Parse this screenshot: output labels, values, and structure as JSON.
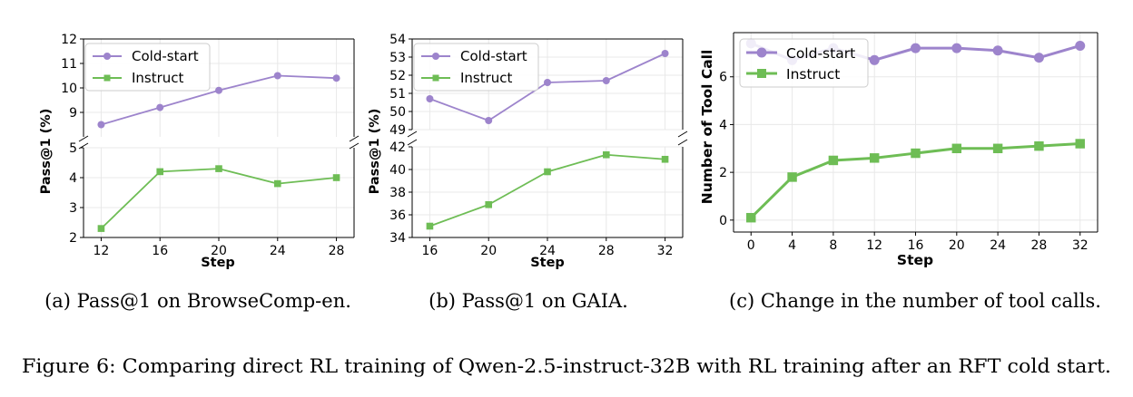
{
  "colors": {
    "cold": "#9d84cc",
    "instruct": "#6ebd55"
  },
  "figure_caption": "Figure 6: Comparing direct RL training of Qwen-2.5-instruct-32B with RL training after an RFT cold start.",
  "chart_data": [
    {
      "id": "a",
      "type": "line",
      "broken_axis": true,
      "caption": "(a) Pass@1 on BrowseComp-en.",
      "xlabel": "Step",
      "ylabel": "Pass@1 (%)",
      "x": [
        12,
        16,
        20,
        24,
        28
      ],
      "xticks": [
        12,
        16,
        20,
        24,
        28
      ],
      "xlim": [
        10.8,
        29.2
      ],
      "ylim_top": [
        8,
        12
      ],
      "yticks_top": [
        9,
        10,
        11,
        12
      ],
      "ylim_bottom": [
        2,
        5
      ],
      "yticks_bottom": [
        2,
        3,
        4,
        5
      ],
      "legend": [
        "Cold-start",
        "Instruct"
      ],
      "series": [
        {
          "name": "Cold-start",
          "panel": "top",
          "values": [
            8.5,
            9.2,
            9.9,
            10.5,
            10.4
          ]
        },
        {
          "name": "Instruct",
          "panel": "bottom",
          "values": [
            2.3,
            4.2,
            4.3,
            3.8,
            4.0
          ]
        }
      ]
    },
    {
      "id": "b",
      "type": "line",
      "broken_axis": true,
      "caption": "(b) Pass@1 on GAIA.",
      "xlabel": "Step",
      "ylabel": "Pass@1 (%)",
      "x": [
        16,
        20,
        24,
        28,
        32
      ],
      "xticks": [
        16,
        20,
        24,
        28,
        32
      ],
      "xlim": [
        14.8,
        33.2
      ],
      "ylim_top": [
        49,
        54
      ],
      "yticks_top": [
        49,
        50,
        51,
        52,
        53,
        54
      ],
      "ylim_bottom": [
        34,
        42
      ],
      "yticks_bottom": [
        34,
        36,
        38,
        40,
        42
      ],
      "legend": [
        "Cold-start",
        "Instruct"
      ],
      "series": [
        {
          "name": "Cold-start",
          "panel": "top",
          "values": [
            50.7,
            49.5,
            51.6,
            51.7,
            53.2
          ]
        },
        {
          "name": "Instruct",
          "panel": "bottom",
          "values": [
            35.0,
            36.9,
            39.8,
            41.3,
            40.9
          ]
        }
      ]
    },
    {
      "id": "c",
      "type": "line",
      "broken_axis": false,
      "caption": "(c) Change in the number of tool calls.",
      "xlabel": "Step",
      "ylabel": "Number of Tool Call",
      "x": [
        0,
        4,
        8,
        12,
        16,
        20,
        24,
        28,
        32
      ],
      "xticks": [
        0,
        4,
        8,
        12,
        16,
        20,
        24,
        28,
        32
      ],
      "xlim": [
        -1.7,
        33.7
      ],
      "ylim": [
        -0.5,
        7.85
      ],
      "yticks": [
        0,
        2,
        4,
        6
      ],
      "legend": [
        "Cold-start",
        "Instruct"
      ],
      "series": [
        {
          "name": "Cold-start",
          "values": [
            7.4,
            6.7,
            7.2,
            6.7,
            7.2,
            7.2,
            7.1,
            6.8,
            7.3
          ]
        },
        {
          "name": "Instruct",
          "values": [
            0.1,
            1.8,
            2.5,
            2.6,
            2.8,
            3.0,
            3.0,
            3.1,
            3.2
          ]
        }
      ]
    }
  ]
}
